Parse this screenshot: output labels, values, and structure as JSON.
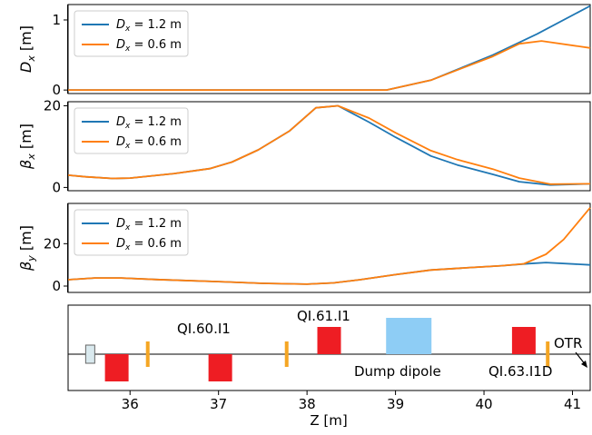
{
  "chart_data": [
    {
      "type": "line",
      "ylabel_base": "D",
      "ylabel_sub": "x",
      "ylabel_unit": " [m]",
      "ylim": [
        -0.05,
        1.22
      ],
      "yticks": [
        0,
        1
      ],
      "legend": {
        "position": "top-left"
      },
      "series": [
        {
          "name": "Dx = 1.2 m",
          "name_base": "D",
          "name_sub": "x",
          "name_rest": " = 1.2 m",
          "color": "#1f77b4",
          "points": [
            [
              35.3,
              0
            ],
            [
              38.9,
              0
            ],
            [
              39.4,
              0.14
            ],
            [
              40.1,
              0.5
            ],
            [
              40.6,
              0.8
            ],
            [
              41.2,
              1.2
            ]
          ]
        },
        {
          "name": "Dx = 0.6 m",
          "name_base": "D",
          "name_sub": "x",
          "name_rest": " = 0.6 m",
          "color": "#ff7f0e",
          "points": [
            [
              35.3,
              0
            ],
            [
              38.9,
              0
            ],
            [
              39.4,
              0.14
            ],
            [
              40.1,
              0.48
            ],
            [
              40.4,
              0.66
            ],
            [
              40.65,
              0.7
            ],
            [
              41.2,
              0.6
            ]
          ]
        }
      ]
    },
    {
      "type": "line",
      "ylabel_base": "β",
      "ylabel_sub": "x",
      "ylabel_unit": " [m]",
      "ylim": [
        -0.8,
        21
      ],
      "yticks": [
        0,
        20
      ],
      "legend": {
        "position": "top-left"
      },
      "series": [
        {
          "name": "Dx = 1.2 m",
          "name_base": "D",
          "name_sub": "x",
          "name_rest": " = 1.2 m",
          "color": "#1f77b4",
          "points": [
            [
              35.3,
              3
            ],
            [
              35.5,
              2.6
            ],
            [
              35.8,
              2.2
            ],
            [
              36.0,
              2.3
            ],
            [
              36.5,
              3.4
            ],
            [
              36.9,
              4.6
            ],
            [
              37.15,
              6.2
            ],
            [
              37.45,
              9.2
            ],
            [
              37.8,
              13.8
            ],
            [
              38.1,
              19.5
            ],
            [
              38.35,
              20
            ],
            [
              38.7,
              16
            ],
            [
              39.0,
              12.3
            ],
            [
              39.4,
              7.7
            ],
            [
              39.7,
              5.5
            ],
            [
              40.1,
              3.2
            ],
            [
              40.4,
              1.4
            ],
            [
              40.75,
              0.6
            ],
            [
              41.2,
              0.9
            ]
          ]
        },
        {
          "name": "Dx = 0.6 m",
          "name_base": "D",
          "name_sub": "x",
          "name_rest": " = 0.6 m",
          "color": "#ff7f0e",
          "points": [
            [
              35.3,
              3
            ],
            [
              35.5,
              2.6
            ],
            [
              35.8,
              2.2
            ],
            [
              36.0,
              2.3
            ],
            [
              36.5,
              3.4
            ],
            [
              36.9,
              4.6
            ],
            [
              37.15,
              6.2
            ],
            [
              37.45,
              9.2
            ],
            [
              37.8,
              13.8
            ],
            [
              38.1,
              19.5
            ],
            [
              38.35,
              20
            ],
            [
              38.7,
              17
            ],
            [
              39.0,
              13.4
            ],
            [
              39.4,
              9
            ],
            [
              39.7,
              6.8
            ],
            [
              40.1,
              4.5
            ],
            [
              40.4,
              2.3
            ],
            [
              40.75,
              0.8
            ],
            [
              41.2,
              0.9
            ]
          ]
        }
      ]
    },
    {
      "type": "line",
      "ylabel_base": "β",
      "ylabel_sub": "y",
      "ylabel_unit": " [m]",
      "ylim": [
        -3,
        39
      ],
      "yticks": [
        0,
        20
      ],
      "legend": {
        "position": "top-left"
      },
      "series": [
        {
          "name": "Dx = 1.2 m",
          "name_base": "D",
          "name_sub": "x",
          "name_rest": " = 1.2 m",
          "color": "#1f77b4",
          "points": [
            [
              35.3,
              3
            ],
            [
              35.6,
              3.8
            ],
            [
              35.9,
              3.8
            ],
            [
              36.3,
              3.1
            ],
            [
              37.0,
              2.1
            ],
            [
              37.5,
              1.3
            ],
            [
              38.0,
              0.9
            ],
            [
              38.3,
              1.5
            ],
            [
              38.6,
              3
            ],
            [
              39.0,
              5.4
            ],
            [
              39.4,
              7.6
            ],
            [
              39.8,
              8.6
            ],
            [
              40.2,
              9.6
            ],
            [
              40.5,
              10.6
            ],
            [
              40.7,
              11.1
            ],
            [
              41.2,
              10
            ]
          ]
        },
        {
          "name": "Dx = 0.6 m",
          "name_base": "D",
          "name_sub": "x",
          "name_rest": " = 0.6 m",
          "color": "#ff7f0e",
          "points": [
            [
              35.3,
              3
            ],
            [
              35.6,
              3.8
            ],
            [
              35.9,
              3.8
            ],
            [
              36.3,
              3.1
            ],
            [
              37.0,
              2.1
            ],
            [
              37.5,
              1.3
            ],
            [
              38.0,
              0.9
            ],
            [
              38.3,
              1.5
            ],
            [
              38.6,
              3
            ],
            [
              39.0,
              5.4
            ],
            [
              39.4,
              7.6
            ],
            [
              39.8,
              8.6
            ],
            [
              40.2,
              9.6
            ],
            [
              40.45,
              10.5
            ],
            [
              40.7,
              15
            ],
            [
              40.9,
              22
            ],
            [
              41.2,
              37
            ]
          ]
        }
      ]
    },
    {
      "type": "diagram",
      "xlabel": "Z [m]",
      "xlim": [
        35.3,
        41.2
      ],
      "xticks": [
        36,
        37,
        38,
        39,
        40,
        41
      ],
      "elements": [
        {
          "kind": "screen",
          "z": 35.55,
          "color": "#d9e9ee"
        },
        {
          "kind": "quad",
          "z": 35.85,
          "polarity": -1,
          "color": "#ee1d23"
        },
        {
          "kind": "corrector",
          "z": 36.2,
          "color": "#f5a623"
        },
        {
          "kind": "quad",
          "z": 37.02,
          "polarity": -1,
          "color": "#ee1d23"
        },
        {
          "kind": "corrector",
          "z": 37.77,
          "color": "#f5a623"
        },
        {
          "kind": "quad",
          "z": 38.25,
          "polarity": 1,
          "color": "#ee1d23"
        },
        {
          "kind": "dipole",
          "z": 39.15,
          "color": "#8ecdf5"
        },
        {
          "kind": "quad",
          "z": 40.45,
          "polarity": 1,
          "color": "#ee1d23"
        },
        {
          "kind": "corrector",
          "z": 40.72,
          "color": "#f5a623"
        }
      ],
      "labels": [
        "QI.60.I1",
        "QI.61.I1",
        "Dump dipole",
        "QI.63.I1D",
        "OTR"
      ]
    }
  ]
}
